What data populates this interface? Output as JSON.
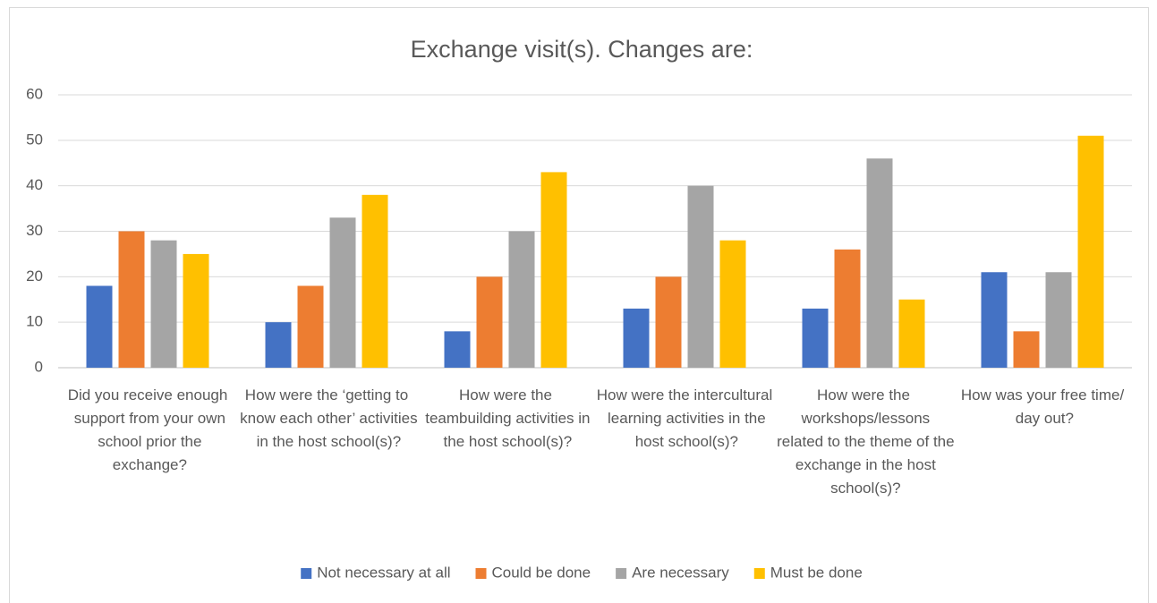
{
  "chart_data": {
    "type": "bar",
    "title": "Exchange visit(s). Changes are:",
    "categories": [
      "Did you receive enough support from your own school prior the exchange?",
      "How were the ‘getting to know each other’ activities in the host school(s)?",
      "How were the teambuilding activities in the host school(s)?",
      "How were the intercultural learning activities in the host school(s)?",
      "How were the workshops/lessons related to the theme of the exchange in the host school(s)?",
      "How was your free time/ day out?"
    ],
    "series": [
      {
        "name": "Not necessary at all",
        "color": "#4472c4",
        "values": [
          18,
          10,
          8,
          13,
          13,
          21
        ]
      },
      {
        "name": "Could be done",
        "color": "#ed7d31",
        "values": [
          30,
          18,
          20,
          20,
          26,
          8
        ]
      },
      {
        "name": "Are necessary",
        "color": "#a5a5a5",
        "values": [
          28,
          33,
          30,
          40,
          46,
          21
        ]
      },
      {
        "name": "Must be done",
        "color": "#ffc000",
        "values": [
          25,
          38,
          43,
          28,
          15,
          51
        ]
      }
    ],
    "ylim": [
      0,
      60
    ],
    "yticks": [
      0,
      10,
      20,
      30,
      40,
      50,
      60
    ],
    "grid": true,
    "legend": "bottom"
  }
}
